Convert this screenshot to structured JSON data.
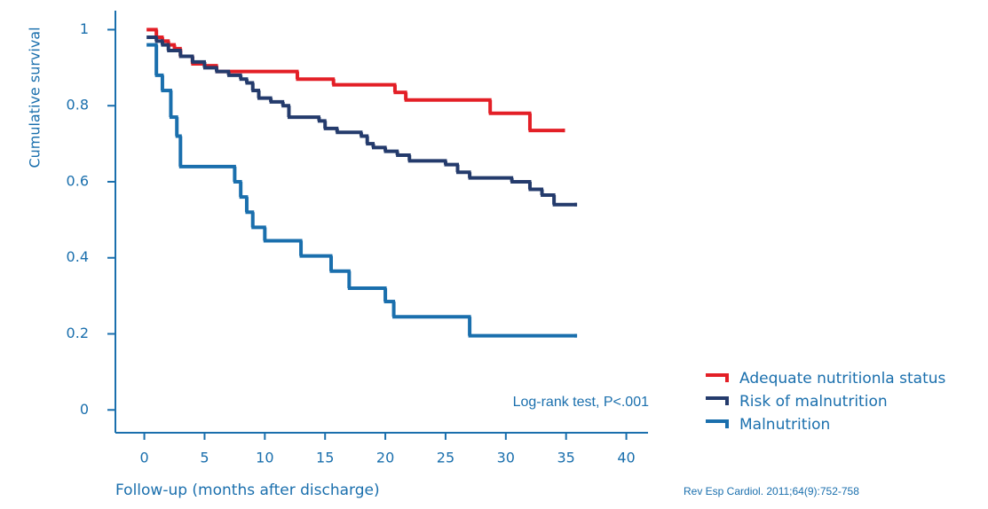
{
  "chart_data": {
    "type": "line",
    "step": true,
    "y_label": "Cumulative survival",
    "x_label": "Follow-up (months after discharge)",
    "annotation": "Log-rank test, P<.001",
    "source": "Rev Esp Cardiol. 2011;64(9):752-758",
    "xlim": [
      -2.4,
      41.8
    ],
    "ylim": [
      -0.06,
      1.05
    ],
    "xticks": [
      0,
      5,
      10,
      15,
      20,
      25,
      30,
      35,
      40
    ],
    "yticks": [
      0,
      0.2,
      0.4,
      0.6,
      0.8,
      1
    ],
    "legend": "right",
    "series": [
      {
        "name": "Adequate nutritionla status",
        "color": "#e31f26",
        "x": [
          0.3,
          1,
          1.5,
          2,
          2.5,
          3,
          4,
          5,
          6,
          12.7,
          15.7,
          20.8,
          21.7,
          28.7,
          32,
          34.8
        ],
        "values": [
          1,
          0.98,
          0.97,
          0.96,
          0.95,
          0.93,
          0.91,
          0.905,
          0.89,
          0.87,
          0.855,
          0.835,
          0.815,
          0.78,
          0.735,
          0.735
        ]
      },
      {
        "name": "Risk of malnutrition",
        "color": "#243b6c",
        "x": [
          0.3,
          1,
          1.5,
          2,
          3,
          4,
          5,
          6,
          7,
          8,
          8.5,
          9,
          9.5,
          10.5,
          11.5,
          12,
          14.5,
          15,
          16,
          18,
          18.5,
          19,
          20,
          21,
          22,
          25,
          26,
          27,
          30.5,
          32,
          33,
          34,
          35.8
        ],
        "values": [
          0.98,
          0.97,
          0.96,
          0.945,
          0.93,
          0.915,
          0.9,
          0.89,
          0.88,
          0.87,
          0.86,
          0.84,
          0.82,
          0.81,
          0.8,
          0.77,
          0.76,
          0.74,
          0.73,
          0.72,
          0.7,
          0.69,
          0.68,
          0.67,
          0.655,
          0.645,
          0.625,
          0.61,
          0.6,
          0.58,
          0.565,
          0.54,
          0.54
        ]
      },
      {
        "name": "Malnutrition",
        "color": "#1a6fad",
        "x": [
          0.3,
          1,
          1.5,
          2.2,
          2.7,
          3,
          7.5,
          8,
          8.5,
          9,
          10,
          13,
          15.5,
          17,
          20,
          20.7,
          27,
          35.8
        ],
        "values": [
          0.96,
          0.88,
          0.84,
          0.77,
          0.72,
          0.64,
          0.6,
          0.56,
          0.52,
          0.48,
          0.445,
          0.405,
          0.365,
          0.32,
          0.285,
          0.245,
          0.195,
          0.195
        ]
      }
    ]
  }
}
